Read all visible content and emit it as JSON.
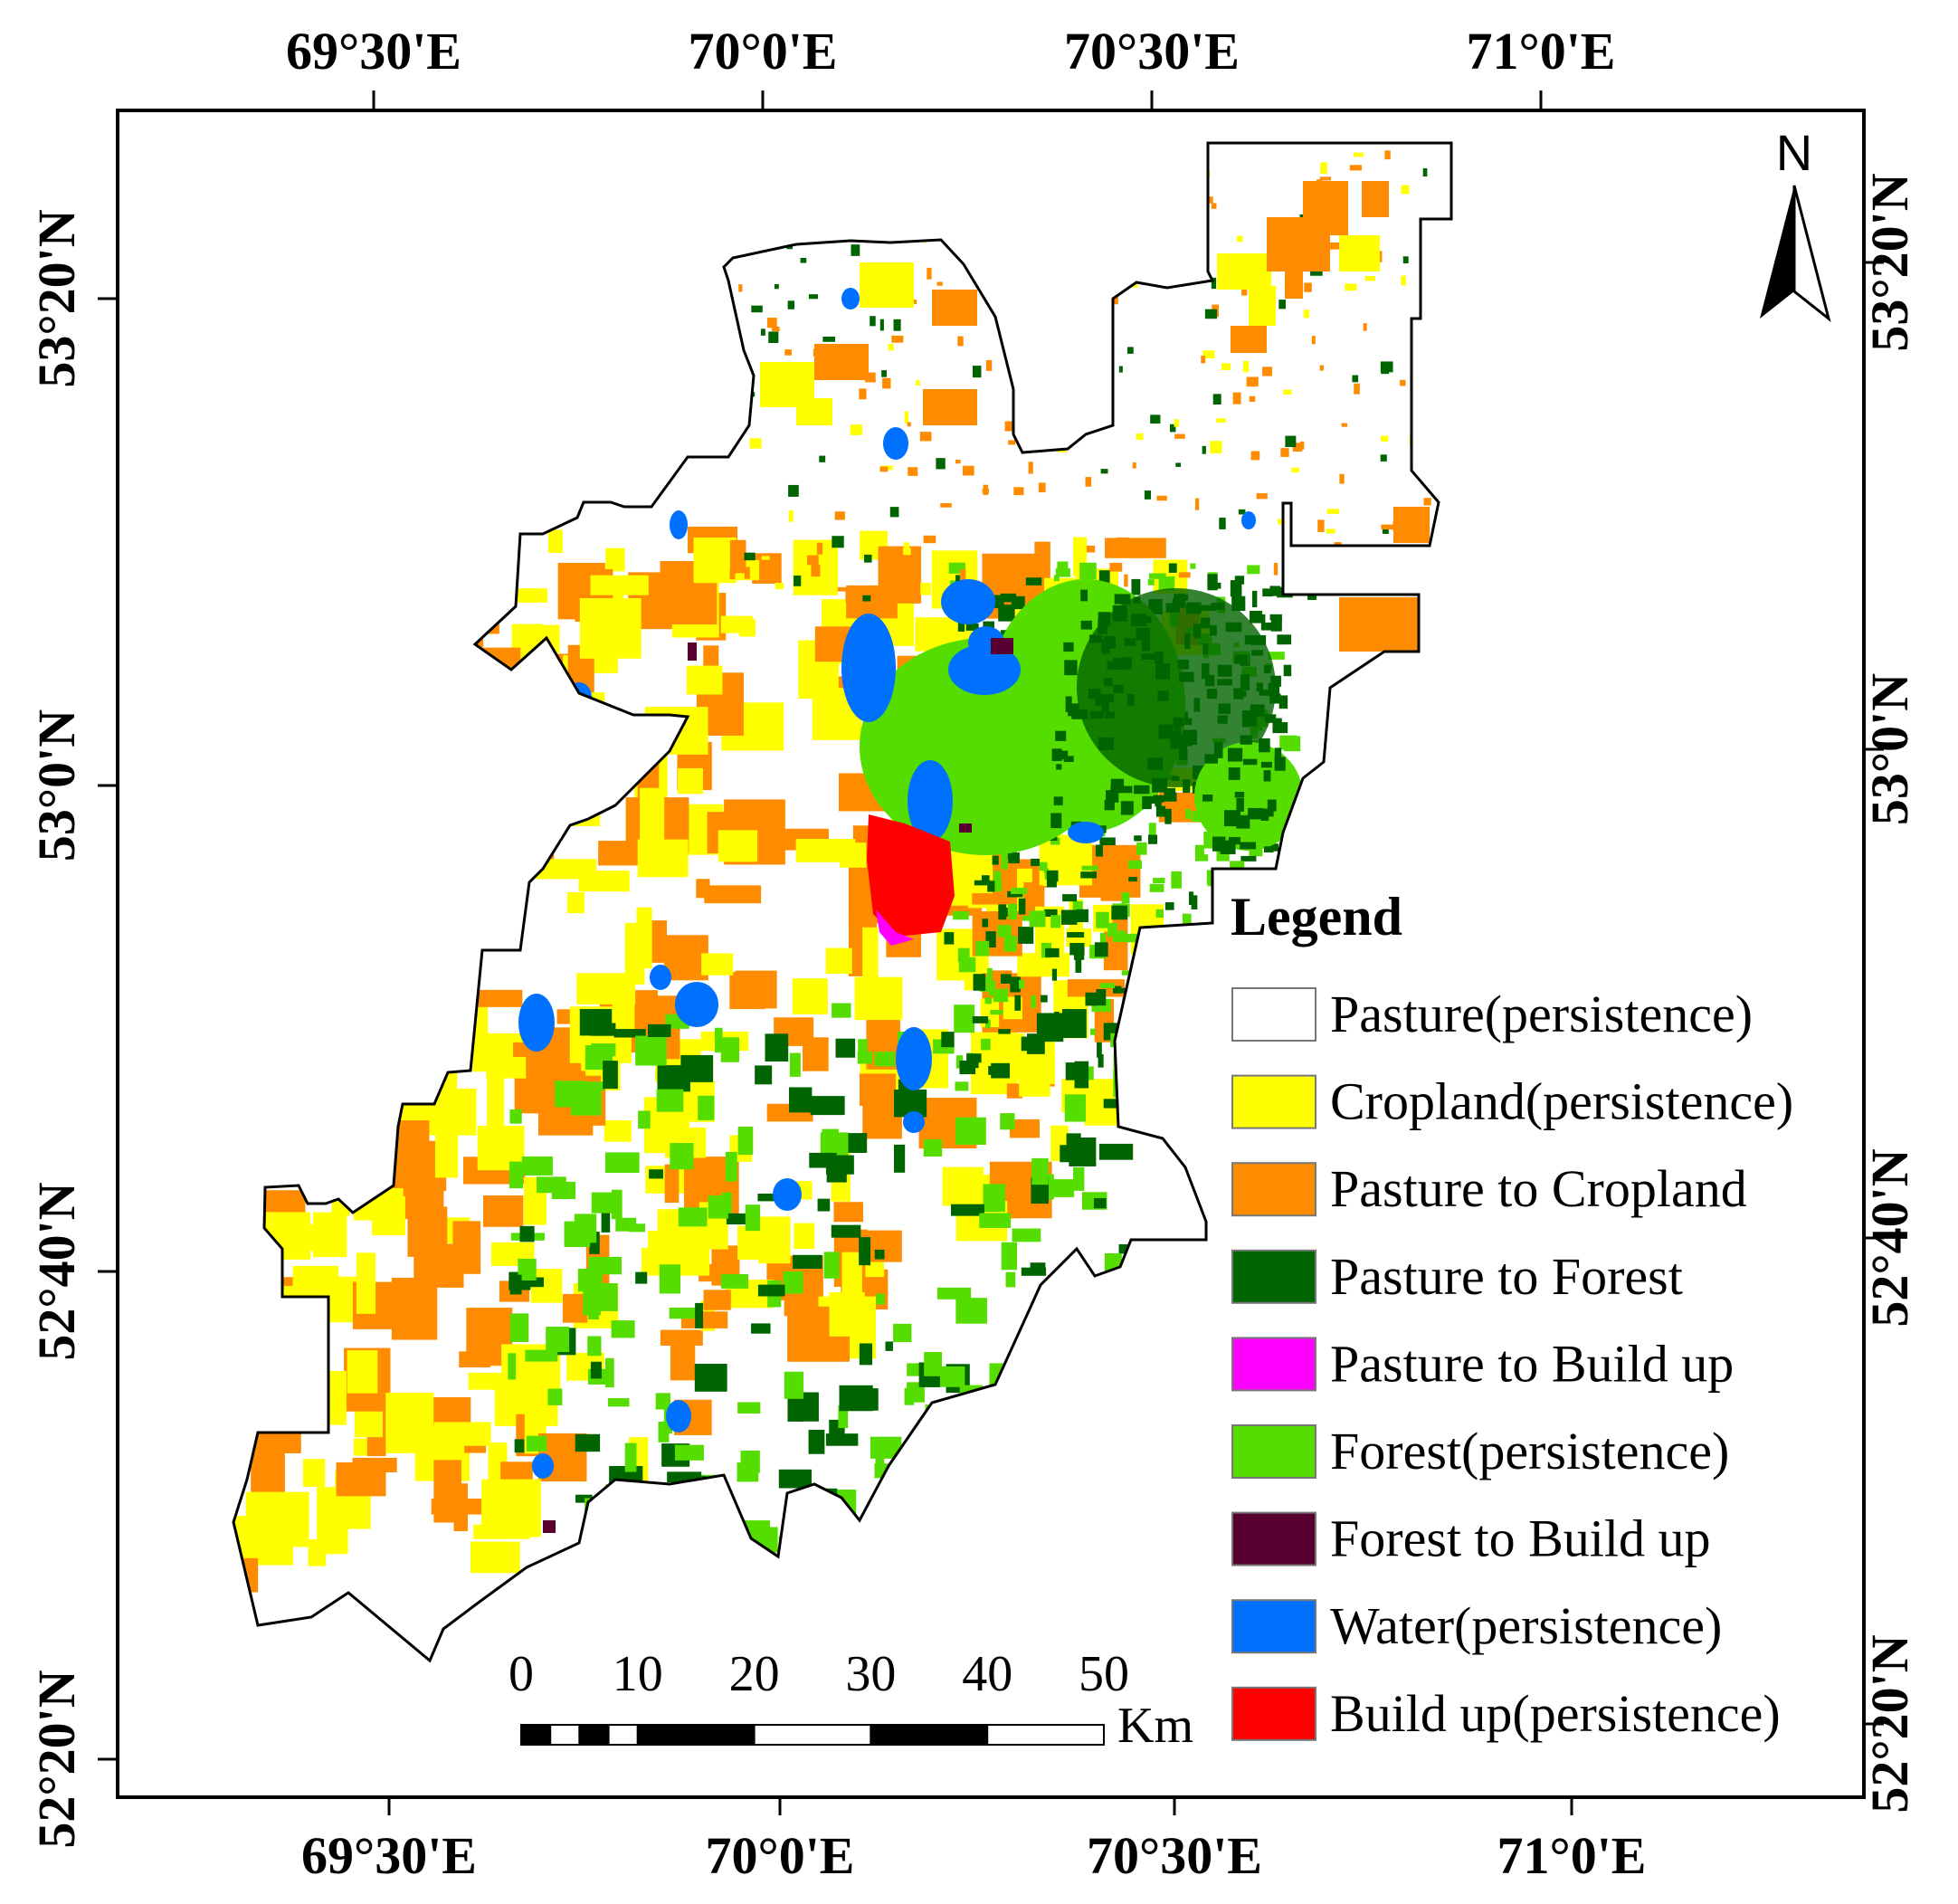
{
  "map": {
    "top_lon_labels": [
      "69°30'E",
      "70°0'E",
      "70°30'E",
      "71°0'E"
    ],
    "bottom_lon_labels": [
      "69°30'E",
      "70°0'E",
      "70°30'E",
      "71°0'E"
    ],
    "left_lat_labels": [
      "53°20'N",
      "53°0'N",
      "52°40'N",
      "52°20'N"
    ],
    "right_lat_labels": [
      "53°20'N",
      "53°0'N",
      "52°40'N",
      "52°20'N"
    ],
    "north_arrow": {
      "label": "N",
      "icon": "north-arrow-icon"
    }
  },
  "legend": {
    "title": "Legend",
    "items": [
      {
        "label": "Pasture(persistence)",
        "color": "#ffffff"
      },
      {
        "label": "Cropland(persistence)",
        "color": "#ffff00"
      },
      {
        "label": "Pasture to Cropland",
        "color": "#ff8c00"
      },
      {
        "label": "Pasture to Forest",
        "color": "#006400"
      },
      {
        "label": "Pasture to Build up",
        "color": "#ff00ff"
      },
      {
        "label": "Forest(persistence)",
        "color": "#55dd00"
      },
      {
        "label": "Forest to Build up",
        "color": "#5a0030"
      },
      {
        "label": "Water(persistence)",
        "color": "#0070ff"
      },
      {
        "label": "Build up(persistence)",
        "color": "#ff0000"
      }
    ]
  },
  "scale_bar": {
    "ticks": [
      "0",
      "10",
      "20",
      "30",
      "40",
      "50"
    ],
    "unit": "Km"
  }
}
